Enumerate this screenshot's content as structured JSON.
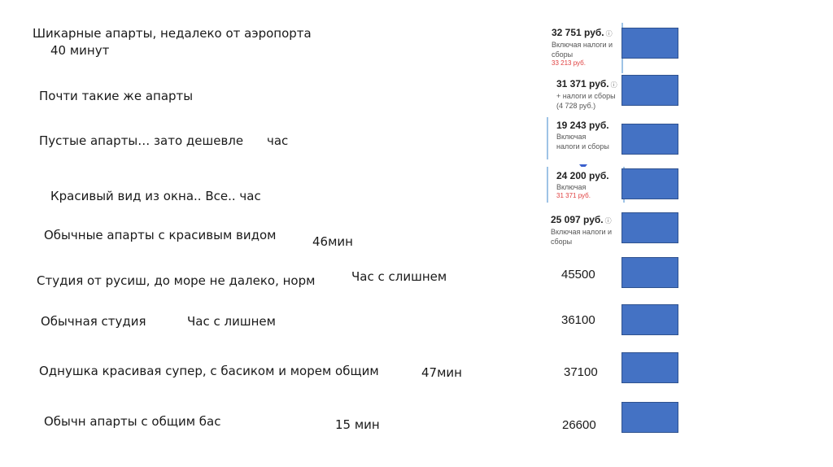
{
  "rows": [
    {
      "title": "Шикарные апарты, недалеко от аэропорта",
      "time": "40 минут"
    },
    {
      "title": "Почти такие же апарты"
    },
    {
      "title": "Пустые апарты… зато дешевле",
      "time": "час"
    },
    {
      "title": "Красивый вид из окна.. Все.. час"
    },
    {
      "title": "Обычные апарты с красивым видом",
      "time": "46мин"
    },
    {
      "title": "Студия от русиш, до море не далеко, норм",
      "time": "Час с слишнем",
      "price": "45500"
    },
    {
      "title": "Обычная студия",
      "time": "Час с лишнем",
      "price": "36100"
    },
    {
      "title": "Однушка красивая супер, с басиком и морем общим",
      "time": "47мин",
      "price": "37100"
    },
    {
      "title": "Обычн апарты с общим бас",
      "time": "15 мин",
      "price": "26600"
    }
  ],
  "price_cards": [
    {
      "price": "32 751 руб.",
      "note1": "Включая налоги и",
      "note2": "сборы",
      "below": "33 213 руб."
    },
    {
      "price": "31 371 руб.",
      "note1": "+ налоги и сборы",
      "note2": "(4 728 руб.)"
    },
    {
      "price": "19 243 руб.",
      "note1": "Включая",
      "note2": "налоги и сборы"
    },
    {
      "price": "24 200 руб.",
      "note1": "Включая",
      "below": "31 371 руб."
    },
    {
      "price": "25 097 руб.",
      "note1": "Включая налоги и",
      "note2": "сборы"
    }
  ],
  "colors": {
    "box_fill": "#4472c4",
    "box_border": "#2f528f"
  }
}
